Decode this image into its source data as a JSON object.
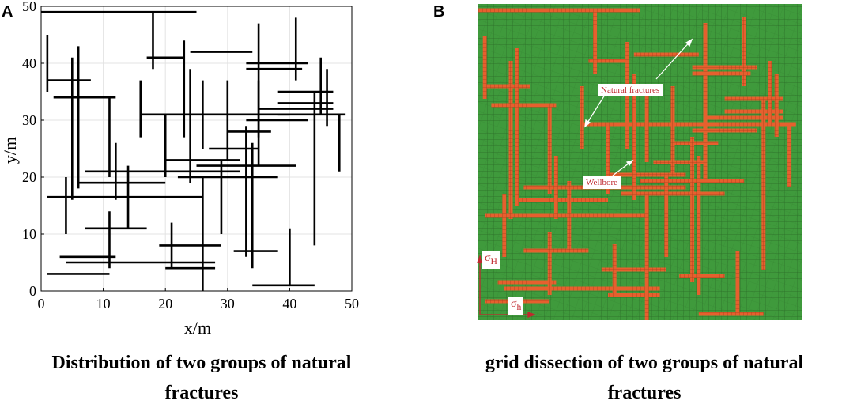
{
  "panel_a": {
    "letter": "A",
    "caption_line1": "Distribution of two groups of natural",
    "caption_line2": "fractures"
  },
  "panel_b": {
    "letter": "B",
    "caption_line1": "grid dissection of two groups of natural",
    "caption_line2": "fractures",
    "label_natural_fractures": "Natural fractures",
    "label_wellbore": "Wellbore",
    "label_sigma_H_symbol": "σ",
    "label_sigma_H_sub": "H",
    "label_sigma_h_symbol": "σ",
    "label_sigma_h_sub": "h",
    "colors": {
      "mesh_background": "#3f9a3c",
      "mesh_line": "#2a6b27",
      "fracture": "#e6602e",
      "label_text": "#c0282e"
    }
  },
  "chart_data": {
    "type": "line",
    "title": "",
    "xlabel": "x/m",
    "ylabel": "y/m",
    "xlim": [
      0,
      50
    ],
    "ylim": [
      0,
      50
    ],
    "xticks": [
      0,
      10,
      20,
      30,
      40,
      50
    ],
    "yticks": [
      0,
      10,
      20,
      30,
      40,
      50
    ],
    "grid": true,
    "line_color": "#000000",
    "horizontal_segments": [
      [
        0,
        49,
        25
      ],
      [
        1,
        37,
        8
      ],
      [
        2,
        34,
        12
      ],
      [
        17,
        41,
        23
      ],
      [
        24,
        42,
        34
      ],
      [
        33,
        40,
        43
      ],
      [
        33,
        39,
        42
      ],
      [
        38,
        35,
        47
      ],
      [
        38,
        33,
        47
      ],
      [
        38,
        31,
        49
      ],
      [
        35,
        32,
        47
      ],
      [
        33,
        30,
        43
      ],
      [
        16,
        31,
        40
      ],
      [
        30,
        28,
        37
      ],
      [
        27,
        25,
        35
      ],
      [
        20,
        23,
        32
      ],
      [
        25,
        22,
        41
      ],
      [
        7,
        21,
        32
      ],
      [
        22,
        20,
        38
      ],
      [
        6,
        19,
        20
      ],
      [
        1,
        16.5,
        26
      ],
      [
        7,
        11,
        17
      ],
      [
        3,
        6,
        12
      ],
      [
        4,
        5,
        28
      ],
      [
        19,
        8,
        29
      ],
      [
        31,
        7,
        38
      ],
      [
        20,
        4,
        28
      ],
      [
        1,
        3,
        11
      ],
      [
        34,
        1,
        44
      ]
    ],
    "vertical_segments": [
      [
        1,
        35,
        45
      ],
      [
        5,
        16,
        41
      ],
      [
        6,
        18,
        43
      ],
      [
        18,
        39,
        49
      ],
      [
        16,
        27,
        37
      ],
      [
        20,
        20,
        31
      ],
      [
        23,
        27,
        44
      ],
      [
        24,
        19,
        39
      ],
      [
        26,
        25,
        37
      ],
      [
        30,
        23,
        37
      ],
      [
        35,
        22,
        47
      ],
      [
        35,
        27,
        37
      ],
      [
        41,
        37,
        48
      ],
      [
        44,
        8,
        35
      ],
      [
        45,
        31,
        41
      ],
      [
        46,
        29,
        39
      ],
      [
        48,
        21,
        31
      ],
      [
        11,
        20,
        34
      ],
      [
        12,
        16,
        26
      ],
      [
        14,
        11,
        22
      ],
      [
        26,
        0,
        20
      ],
      [
        29,
        10,
        23
      ],
      [
        33,
        6,
        29
      ],
      [
        34,
        4,
        26
      ],
      [
        4,
        10,
        20
      ],
      [
        11,
        4,
        14
      ],
      [
        21,
        4,
        12
      ],
      [
        40,
        1,
        11
      ]
    ]
  }
}
